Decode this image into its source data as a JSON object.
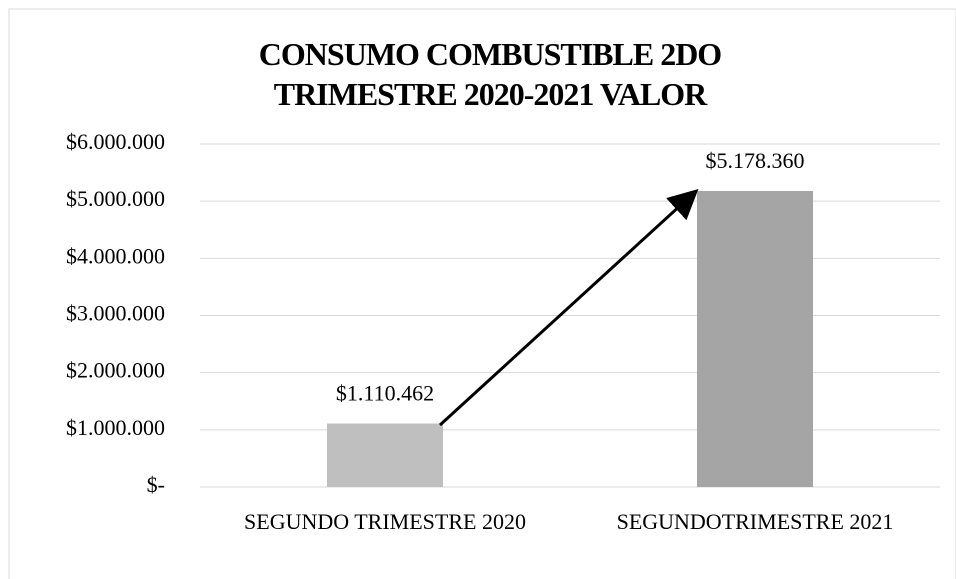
{
  "chart_data": {
    "type": "bar",
    "title": "CONSUMO COMBUSTIBLE 2DO TRIMESTRE 2020-2021 VALOR",
    "categories": [
      "SEGUNDO TRIMESTRE 2020",
      "SEGUNDOTRIMESTRE 2021"
    ],
    "values": [
      1110462,
      5178360
    ],
    "value_labels": [
      "$1.110.462",
      "$5.178.360"
    ],
    "colors": [
      "#bfbfbf",
      "#a5a5a5"
    ],
    "ylim": [
      0,
      6000000
    ],
    "yticks": [
      {
        "value": 0,
        "label": "$-"
      },
      {
        "value": 1000000,
        "label": "$1.000.000"
      },
      {
        "value": 2000000,
        "label": "$2.000.000"
      },
      {
        "value": 3000000,
        "label": "$3.000.000"
      },
      {
        "value": 4000000,
        "label": "$4.000.000"
      },
      {
        "value": 5000000,
        "label": "$5.000.000"
      },
      {
        "value": 6000000,
        "label": "$6.000.000"
      }
    ],
    "grid": true
  }
}
